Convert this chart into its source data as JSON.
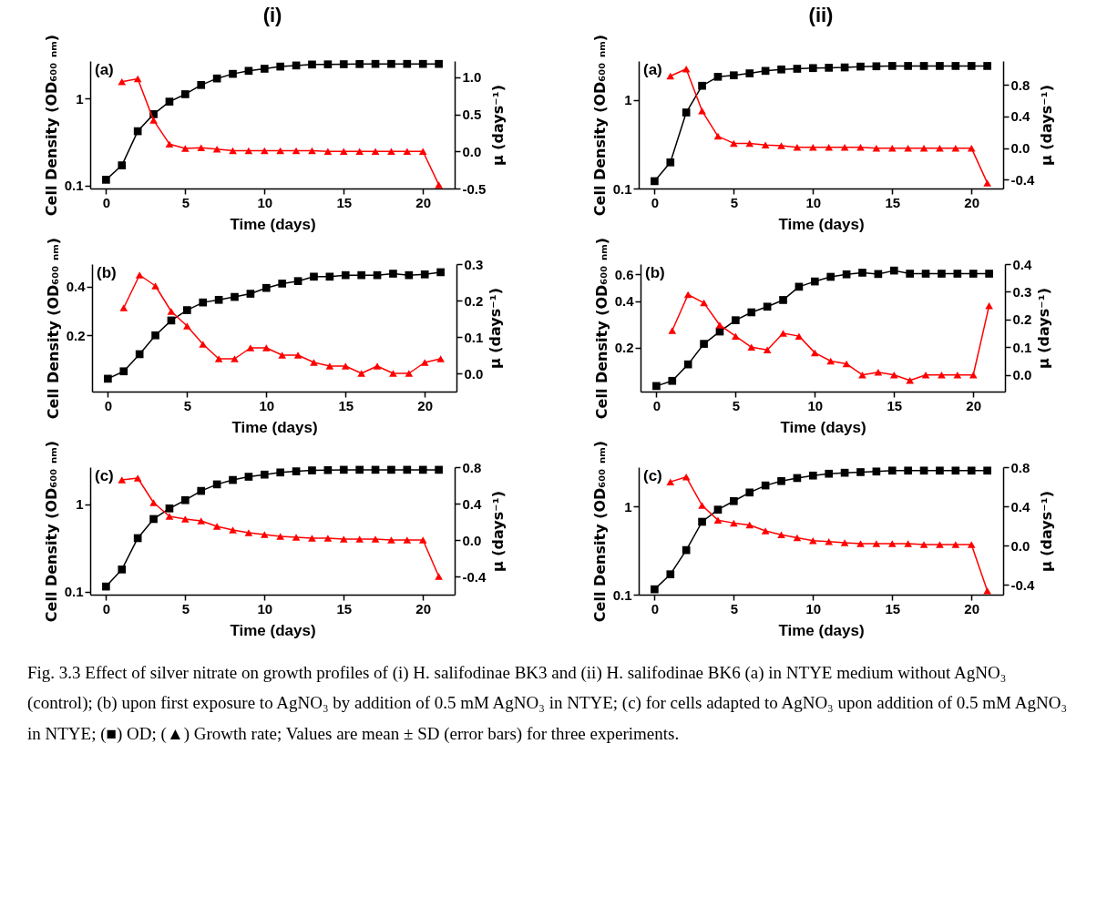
{
  "chart_data": [
    {
      "type": "line",
      "title": "(i)",
      "xlabel": "Time (days)",
      "ylabel": "Cell Density (OD₆₀₀ ₙₘ)",
      "y2label": "μ (days⁻¹)",
      "log": "y",
      "annotations": [
        "(a)"
      ],
      "x": [
        0,
        1,
        2,
        3,
        4,
        5,
        6,
        7,
        8,
        9,
        10,
        11,
        12,
        13,
        14,
        15,
        16,
        17,
        18,
        19,
        20,
        21
      ],
      "xlim": [
        -1,
        22
      ],
      "xticks": [
        0,
        5,
        10,
        15,
        20
      ],
      "ylim": [
        0.092,
        2.7
      ],
      "yticks": [
        0.1,
        1
      ],
      "y2lim": [
        -0.5,
        1.22
      ],
      "y2ticks": [
        {
          "value": -0.5,
          "label": "-0.5"
        },
        {
          "value": 0,
          "label": "0.0"
        },
        {
          "value": 0.5,
          "label": "0.5"
        },
        {
          "value": 1,
          "label": "1.0"
        }
      ],
      "series": [
        {
          "color": "#000000",
          "marker": "square",
          "values": [
            0.116,
            0.17,
            0.42,
            0.66,
            0.92,
            1.12,
            1.43,
            1.7,
            1.92,
            2.08,
            2.2,
            2.33,
            2.4,
            2.46,
            2.47,
            2.48,
            2.49,
            2.5,
            2.5,
            2.5,
            2.5,
            2.5
          ]
        },
        {
          "color": "#ff0000",
          "marker": "triangle",
          "axis": "y2",
          "values": [
            null,
            0.94,
            0.98,
            0.42,
            0.1,
            0.04,
            0.05,
            0.03,
            0.01,
            0.01,
            0.01,
            0.01,
            0.01,
            0.01,
            0.0,
            0.0,
            0.0,
            0.0,
            0.0,
            0.0,
            0.0,
            -0.45
          ]
        }
      ]
    },
    {
      "type": "line",
      "title": "(ii)",
      "xlabel": "Time (days)",
      "ylabel": "Cell Density (OD₆₀₀ ₙₘ)",
      "y2label": "μ (days⁻¹)",
      "log": "y",
      "annotations": [
        "(a)"
      ],
      "x": [
        0,
        1,
        2,
        3,
        4,
        5,
        6,
        7,
        8,
        9,
        10,
        11,
        12,
        13,
        14,
        15,
        16,
        17,
        18,
        19,
        20,
        21
      ],
      "xlim": [
        -1,
        22
      ],
      "xticks": [
        0,
        5,
        10,
        15,
        20
      ],
      "ylim": [
        0.1,
        2.74
      ],
      "yticks": [
        0.1,
        1
      ],
      "y2lim": [
        -0.51,
        1.1
      ],
      "y2ticks": [
        {
          "value": -0.4,
          "label": "-0.4"
        },
        {
          "value": 0,
          "label": "0.0"
        },
        {
          "value": 0.4,
          "label": "0.4"
        },
        {
          "value": 0.8,
          "label": "0.8"
        }
      ],
      "series": [
        {
          "color": "#000000",
          "marker": "square",
          "values": [
            0.121,
            0.197,
            0.72,
            1.44,
            1.82,
            1.89,
            1.99,
            2.12,
            2.2,
            2.24,
            2.28,
            2.3,
            2.32,
            2.37,
            2.39,
            2.41,
            2.41,
            2.41,
            2.41,
            2.41,
            2.41,
            2.41
          ]
        },
        {
          "color": "#ff0000",
          "marker": "triangle",
          "axis": "y2",
          "values": [
            null,
            0.91,
            1.0,
            0.47,
            0.15,
            0.06,
            0.06,
            0.04,
            0.03,
            0.01,
            0.01,
            0.01,
            0.01,
            0.01,
            0.0,
            0.0,
            0.0,
            0.0,
            0.0,
            0.0,
            0.0,
            -0.44
          ]
        }
      ]
    },
    {
      "type": "line",
      "xlabel": "Time (days)",
      "ylabel": "Cell Density (OD₆₀₀ ₙₘ)",
      "y2label": "μ (days⁻¹)",
      "log": "y",
      "annotations": [
        "(b)"
      ],
      "x": [
        0,
        1,
        2,
        3,
        4,
        5,
        6,
        7,
        8,
        9,
        10,
        11,
        12,
        13,
        14,
        15,
        16,
        17,
        18,
        19,
        20,
        21
      ],
      "xlim": [
        -1,
        22
      ],
      "xticks": [
        0,
        5,
        10,
        15,
        20
      ],
      "ylim": [
        0.09,
        0.55
      ],
      "yticks": [
        0.2,
        0.4
      ],
      "y2lim": [
        -0.05,
        0.3
      ],
      "y2ticks": [
        {
          "value": 0,
          "label": "0.0"
        },
        {
          "value": 0.1,
          "label": "0.1"
        },
        {
          "value": 0.2,
          "label": "0.2"
        },
        {
          "value": 0.3,
          "label": "0.3"
        }
      ],
      "series": [
        {
          "color": "#000000",
          "marker": "square",
          "values": [
            0.108,
            0.12,
            0.153,
            0.2,
            0.247,
            0.286,
            0.319,
            0.331,
            0.345,
            0.361,
            0.392,
            0.417,
            0.432,
            0.46,
            0.46,
            0.47,
            0.47,
            0.47,
            0.48,
            0.47,
            0.475,
            0.49
          ]
        },
        {
          "color": "#ff0000",
          "marker": "triangle",
          "axis": "y2",
          "values": [
            null,
            0.18,
            0.27,
            0.24,
            0.17,
            0.13,
            0.08,
            0.04,
            0.04,
            0.07,
            0.07,
            0.05,
            0.05,
            0.03,
            0.02,
            0.02,
            0.0,
            0.02,
            0.0,
            0.0,
            0.03,
            0.04
          ]
        }
      ]
    },
    {
      "type": "line",
      "xlabel": "Time (days)",
      "ylabel": "Cell Density (OD₆₀₀ ₙₘ)",
      "y2label": "μ (days⁻¹)",
      "log": "y",
      "annotations": [
        "(b)"
      ],
      "x": [
        0,
        1,
        2,
        3,
        4,
        5,
        6,
        7,
        8,
        9,
        10,
        11,
        12,
        13,
        14,
        15,
        16,
        17,
        18,
        19,
        20,
        21
      ],
      "xlim": [
        -1,
        22
      ],
      "xticks": [
        0,
        5,
        10,
        15,
        20
      ],
      "ylim": [
        0.103,
        0.7
      ],
      "yticks": [
        0.2,
        0.4,
        0.6
      ],
      "y2lim": [
        -0.06,
        0.4
      ],
      "y2ticks": [
        {
          "value": 0,
          "label": "0.0"
        },
        {
          "value": 0.1,
          "label": "0.1"
        },
        {
          "value": 0.2,
          "label": "0.2"
        },
        {
          "value": 0.3,
          "label": "0.3"
        },
        {
          "value": 0.4,
          "label": "0.4"
        }
      ],
      "series": [
        {
          "color": "#000000",
          "marker": "square",
          "values": [
            0.112,
            0.121,
            0.155,
            0.211,
            0.254,
            0.301,
            0.339,
            0.369,
            0.408,
            0.498,
            0.539,
            0.578,
            0.6,
            0.615,
            0.603,
            0.635,
            0.606,
            0.606,
            0.606,
            0.606,
            0.606,
            0.606
          ]
        },
        {
          "color": "#ff0000",
          "marker": "triangle",
          "axis": "y2",
          "values": [
            null,
            0.16,
            0.29,
            0.26,
            0.18,
            0.14,
            0.1,
            0.09,
            0.15,
            0.14,
            0.08,
            0.05,
            0.04,
            0.0,
            0.01,
            0.0,
            -0.02,
            0.0,
            0.0,
            0.0,
            0.0,
            0.25
          ]
        }
      ]
    },
    {
      "type": "line",
      "xlabel": "Time (days)",
      "ylabel": "Cell Density (OD₆₀₀ ₙₘ)",
      "y2label": "μ (days⁻¹)",
      "log": "y",
      "annotations": [
        "(c)"
      ],
      "x": [
        0,
        1,
        2,
        3,
        4,
        5,
        6,
        7,
        8,
        9,
        10,
        11,
        12,
        13,
        14,
        15,
        16,
        17,
        18,
        19,
        20,
        21
      ],
      "xlim": [
        -1,
        22
      ],
      "xticks": [
        0,
        5,
        10,
        15,
        20
      ],
      "ylim": [
        0.092,
        2.68
      ],
      "yticks": [
        0.1,
        1
      ],
      "y2lim": [
        -0.6,
        0.8
      ],
      "y2ticks": [
        {
          "value": -0.4,
          "label": "-0.4"
        },
        {
          "value": 0,
          "label": "0.0"
        },
        {
          "value": 0.4,
          "label": "0.4"
        },
        {
          "value": 0.8,
          "label": "0.8"
        }
      ],
      "series": [
        {
          "color": "#000000",
          "marker": "square",
          "values": [
            0.114,
            0.179,
            0.41,
            0.68,
            0.9,
            1.12,
            1.43,
            1.7,
            1.91,
            2.08,
            2.2,
            2.33,
            2.4,
            2.46,
            2.48,
            2.5,
            2.5,
            2.5,
            2.5,
            2.5,
            2.5,
            2.5
          ]
        },
        {
          "color": "#ff0000",
          "marker": "triangle",
          "axis": "y2",
          "values": [
            null,
            0.66,
            0.68,
            0.41,
            0.26,
            0.23,
            0.21,
            0.15,
            0.11,
            0.08,
            0.06,
            0.04,
            0.03,
            0.02,
            0.02,
            0.01,
            0.01,
            0.01,
            0.0,
            0.0,
            0.0,
            -0.4
          ]
        }
      ]
    },
    {
      "type": "line",
      "xlabel": "Time (days)",
      "ylabel": "Cell Density (OD₆₀₀ ₙₘ)",
      "y2label": "μ (days⁻¹)",
      "log": "y",
      "annotations": [
        "(c)",
        "Fig. 3.3 Effect of silver nitrate on growth profiles of (i) H. salifodinae BK3 and (ii) H. salifodinae BK6 (a) in NTYE medium without AgNO₃ (control); (b) upon first exposure to AgNO₃ by addition of 0.5 mM AgNO₃ in NTYE; (c) for cells adapted to AgNO₃ upon addition of 0.5 mM AgNO₃ in NTYE; (■) OD; (▲) Growth rate; Values are mean ± SD (error bars) for three experiments."
      ],
      "x": [
        0,
        1,
        2,
        3,
        4,
        5,
        6,
        7,
        8,
        9,
        10,
        11,
        12,
        13,
        14,
        15,
        16,
        17,
        18,
        19,
        20,
        21
      ],
      "xlim": [
        -1,
        22
      ],
      "xticks": [
        0,
        5,
        10,
        15,
        20
      ],
      "ylim": [
        0.1,
        2.79
      ],
      "yticks": [
        0.1,
        1
      ],
      "y2lim": [
        -0.5,
        0.8
      ],
      "y2ticks": [
        {
          "value": -0.4,
          "label": "-0.4"
        },
        {
          "value": 0,
          "label": "0.0"
        },
        {
          "value": 0.4,
          "label": "0.4"
        },
        {
          "value": 0.8,
          "label": "0.8"
        }
      ],
      "series": [
        {
          "color": "#000000",
          "marker": "square",
          "values": [
            0.115,
            0.17,
            0.32,
            0.67,
            0.92,
            1.15,
            1.44,
            1.73,
            1.94,
            2.1,
            2.24,
            2.35,
            2.41,
            2.45,
            2.49,
            2.55,
            2.55,
            2.55,
            2.55,
            2.55,
            2.55,
            2.55
          ]
        },
        {
          "color": "#ff0000",
          "marker": "triangle",
          "axis": "y2",
          "values": [
            null,
            0.65,
            0.7,
            0.41,
            0.26,
            0.23,
            0.21,
            0.15,
            0.11,
            0.08,
            0.05,
            0.04,
            0.03,
            0.02,
            0.02,
            0.02,
            0.02,
            0.01,
            0.01,
            0.01,
            0.01,
            -0.46
          ]
        }
      ]
    }
  ]
}
